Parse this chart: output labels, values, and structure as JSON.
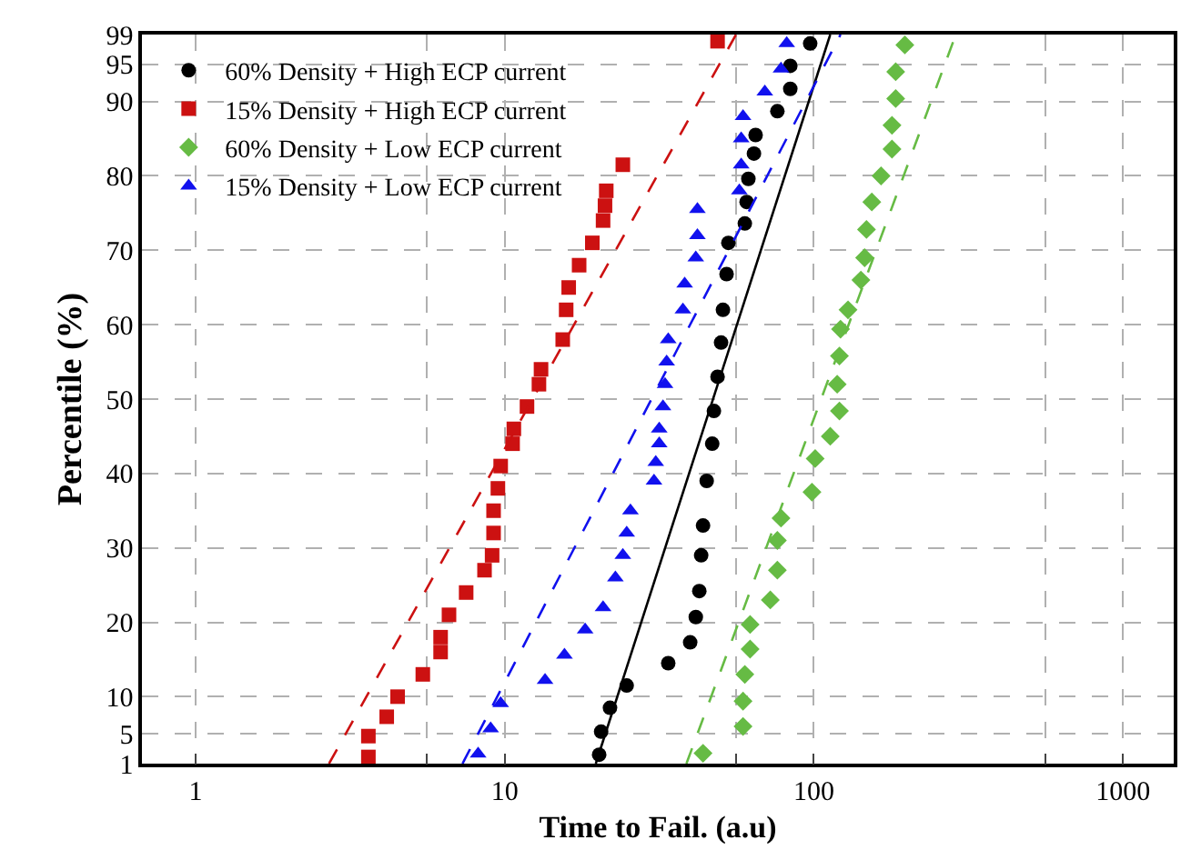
{
  "chart_data": {
    "type": "scatter",
    "xlabel": "Time to Fail. (a.u)",
    "ylabel": "Percentile (%)",
    "log": "x",
    "grid": true,
    "legend": "top left",
    "xlim": [
      0.67,
      1460
    ],
    "xticks": [
      1,
      {
        "value": 5.6,
        "label": null
      },
      10,
      {
        "value": 56,
        "label": null
      },
      100,
      {
        "value": 560,
        "label": null
      },
      1000
    ],
    "ylim": [
      1,
      99
    ],
    "yticks": [
      1,
      5,
      10,
      20,
      30,
      40,
      50,
      60,
      70,
      80,
      90,
      95,
      99
    ],
    "series": [
      {
        "name": "60% Density + High ECP current",
        "marker": "circle",
        "color": "#000000",
        "x": [
          20.2,
          20.5,
          21.9,
          24.8,
          33.8,
          39.8,
          41.5,
          42.6,
          43.2,
          43.8,
          45,
          46.9,
          47.5,
          48.8,
          50.1,
          50.8,
          52.2,
          52.9,
          59.8,
          60.6,
          61.4,
          64,
          64.8,
          76.2,
          83.9,
          83.9,
          97.3
        ],
        "values": [
          2.2,
          5.3,
          8.5,
          11.5,
          14.5,
          17.3,
          20.7,
          24.2,
          29,
          33,
          39,
          44,
          48.4,
          53,
          57.6,
          62,
          66.8,
          71,
          73.6,
          76.5,
          79.6,
          83,
          85.5,
          88.7,
          91.7,
          94.8,
          97.8
        ]
      },
      {
        "name": "15% Density + High ECP current",
        "marker": "square",
        "color": "#cc1111",
        "x": [
          3.62,
          3.62,
          4.15,
          4.5,
          5.43,
          6.2,
          6.2,
          6.6,
          7.5,
          8.6,
          9.1,
          9.2,
          9.2,
          9.5,
          9.7,
          10.6,
          10.7,
          11.8,
          12.9,
          13.1,
          15.4,
          15.8,
          16.1,
          17.4,
          19.2,
          20.8,
          21.1,
          21.3,
          24.1,
          48.8
        ],
        "values": [
          1.9,
          4.7,
          7.3,
          10,
          13,
          16,
          18,
          21,
          24,
          27,
          29,
          32,
          35,
          38,
          41,
          44,
          46,
          49,
          52,
          54,
          58,
          62,
          65,
          68,
          71,
          74,
          76,
          78,
          81.5,
          98.1
        ]
      },
      {
        "name": "60% Density + Low ECP current",
        "marker": "diamond",
        "color": "#66bb44",
        "x": [
          43.8,
          59,
          59,
          59.8,
          62.2,
          62.2,
          72.3,
          76.2,
          76.2,
          78.3,
          98.6,
          101,
          113,
          121,
          119,
          121,
          122,
          129,
          142,
          146,
          148,
          154,
          165,
          179,
          179,
          184,
          184,
          197
        ],
        "values": [
          2.4,
          6,
          9.4,
          13,
          16.4,
          19.7,
          23,
          27,
          31,
          34,
          37.5,
          42,
          45,
          48.4,
          52,
          55.8,
          59.4,
          62,
          66,
          69,
          72.8,
          76.5,
          80,
          83.6,
          86.8,
          90.4,
          94,
          97.6
        ]
      },
      {
        "name": "15% Density + Low ECP current",
        "marker": "triangle",
        "color": "#1111ee",
        "x": [
          8.2,
          9,
          9.7,
          13.5,
          15.6,
          18.2,
          20.8,
          22.8,
          24.1,
          24.8,
          25.5,
          30.4,
          30.8,
          31.6,
          31.6,
          32.5,
          33,
          33.4,
          33.8,
          37.7,
          38.2,
          41.5,
          42,
          42,
          57.4,
          58.2,
          58.2,
          59,
          69.4,
          78.3,
          81.7
        ],
        "values": [
          2.3,
          5.7,
          9.1,
          12.2,
          15.6,
          19,
          22,
          26,
          29,
          32,
          35,
          39,
          41.5,
          44,
          46,
          49,
          52,
          55,
          58,
          62,
          65.5,
          69,
          72,
          75.5,
          78,
          81.5,
          85,
          88,
          91.3,
          94.4,
          97.8
        ]
      },
      {
        "type": "line",
        "line_style": "solid",
        "color": "#000000",
        "x": [
          19.7,
          113
        ],
        "values": [
          1,
          99
        ]
      },
      {
        "type": "line",
        "line_style": "dashed",
        "color": "#cc1111",
        "x": [
          2.7,
          56
        ],
        "values": [
          1,
          99
        ]
      },
      {
        "type": "line",
        "line_style": "dashed",
        "color": "#66bb44",
        "x": [
          38.7,
          288
        ],
        "values": [
          1,
          99
        ]
      },
      {
        "type": "line",
        "line_style": "dashed",
        "color": "#1111ee",
        "x": [
          7.3,
          122
        ],
        "values": [
          1,
          99
        ]
      }
    ]
  }
}
